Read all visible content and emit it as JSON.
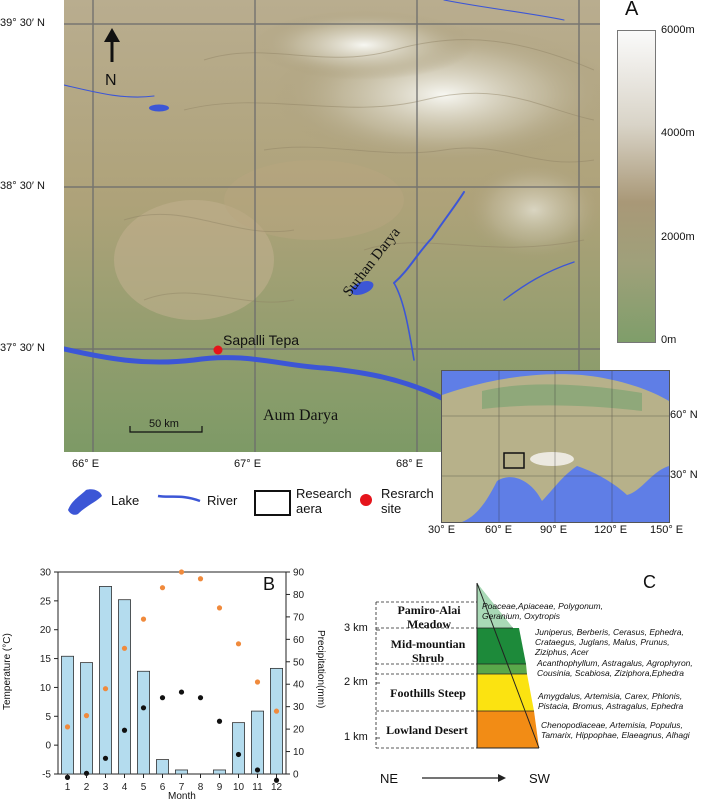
{
  "panel_a": {
    "label": "A",
    "lat_labels": [
      "39° 30′ N",
      "38° 30′ N",
      "37° 30′ N"
    ],
    "lon_labels": [
      "66° E",
      "67° E",
      "68° E"
    ],
    "north_label": "N",
    "places": {
      "site": "Sapalli Tepa",
      "river1": "Surhan Darya",
      "river2": "Aum Darya"
    },
    "scale_bar": "50 km",
    "elevation_legend": [
      "6000m",
      "4000m",
      "2000m",
      "0m"
    ],
    "inset": {
      "lat_labels": [
        "60° N",
        "30° N"
      ],
      "lon_labels": [
        "30° E",
        "60° E",
        "90° E",
        "120° E",
        "150° E"
      ]
    },
    "legend": {
      "lake": "Lake",
      "river": "River",
      "research_area": "Research aera",
      "research_site": "Resrarch site"
    },
    "colors": {
      "site": "#e5141b",
      "water": "#3c56d6",
      "low": "#7f9e6a",
      "high": "#f4f4f4"
    }
  },
  "panel_b": {
    "label": "B",
    "chart_data": {
      "type": "bar",
      "xlabel": "Month",
      "ylabel_left": "Temperature (°C)",
      "ylabel_right": "Precipitation(mm)",
      "categories": [
        "1",
        "2",
        "3",
        "4",
        "5",
        "6",
        "7",
        "8",
        "9",
        "10",
        "11",
        "12"
      ],
      "ylim_left": [
        -5,
        30
      ],
      "ylim_right": [
        0,
        90
      ],
      "yticks_left": [
        "-5",
        "0",
        "5",
        "10",
        "15",
        "20",
        "25",
        "30"
      ],
      "yticks_right": [
        "0",
        "10",
        "20",
        "30",
        "40",
        "50",
        "60",
        "70",
        "80",
        "90"
      ],
      "series": [
        {
          "values": [
            15.4,
            14.3,
            27.5,
            25.2,
            12.8,
            -2.5,
            -4.3,
            -5.0,
            -4.3,
            3.9,
            5.9,
            13.3
          ],
          "axis": "left",
          "kind": "bar",
          "color": "#b4dcee"
        },
        {
          "values": [
            -1.5,
            0.3,
            7.0,
            19.5,
            29.5,
            34.0,
            36.5,
            34.0,
            23.5,
            8.7,
            1.8,
            -2.8
          ],
          "axis": "right",
          "kind": "points",
          "color": "#111111"
        },
        {
          "values": [
            21,
            26,
            38,
            56,
            69,
            83,
            90,
            87,
            74,
            58,
            41,
            28
          ],
          "axis": "right",
          "kind": "points",
          "color": "#f08a3c"
        }
      ]
    }
  },
  "panel_c": {
    "label": "C",
    "scale_ticks": [
      "3 km",
      "2 km",
      "1 km"
    ],
    "direction_left": "NE",
    "direction_right": "SW",
    "zones": [
      {
        "name": "Pamiro-Alai\nMeadow",
        "taxa": "Poaceae,Apiaceae, Polygonum,\nGeranium, Oxytropis",
        "color": "#a9d9b6"
      },
      {
        "name": "Mid-mountian\nShrub",
        "taxa": "Juniperus, Berberis, Cerasus, Ephedra,\nCrataegus, Juglans, Malus, Prunus,\nZiziphus, Acer",
        "color": "#1d8a3a"
      },
      {
        "name": "",
        "taxa": "Acanthophyllum, Astragalus, Agrophyron,\nCousinia, Scabiosa, Ziziphora,Ephedra",
        "color": "#5aa84a"
      },
      {
        "name": "Foothills Steep",
        "taxa": "Amygdalus, Artemisia, Carex, Phlonis,\nPistacia, Bromus, Astragalus, Ephedra",
        "color": "#fbe311"
      },
      {
        "name": "Lowland Desert",
        "taxa": "Chenopodiaceae, Artemisia, Populus,\nTamarix, Hippophae, Elaeagnus, Alhagi",
        "color": "#f28c15"
      }
    ]
  }
}
